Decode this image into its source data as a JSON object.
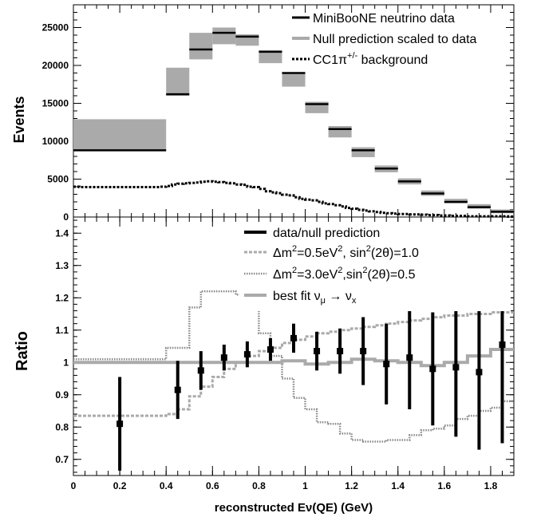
{
  "chart_data": [
    {
      "type": "bar",
      "title": "",
      "ylabel": "Events",
      "xlim": [
        0,
        1.9
      ],
      "ylim": [
        0,
        28000
      ],
      "yticks": [
        0,
        5000,
        10000,
        15000,
        20000,
        25000
      ],
      "yticklabels": [
        "0",
        "5000",
        "10000",
        "15000",
        "20000",
        "25000"
      ],
      "legend": {
        "position": "top-right",
        "entries": [
          {
            "label": "MiniBooNE neutrino data",
            "color": "#000000",
            "style": "solid"
          },
          {
            "label": "Null prediction scaled to data",
            "color": "#aaaaaa",
            "style": "solid"
          },
          {
            "label": "CC1π+/- background",
            "color": "#000000",
            "style": "dotted"
          }
        ]
      },
      "bins": [
        {
          "x0": 0.0,
          "x1": 0.4,
          "data": 8800,
          "pred_low": 8800,
          "pred_high": 12900
        },
        {
          "x0": 0.4,
          "x1": 0.5,
          "data": 16200,
          "pred_low": 16000,
          "pred_high": 19700
        },
        {
          "x0": 0.5,
          "x1": 0.6,
          "data": 22100,
          "pred_low": 20800,
          "pred_high": 24300
        },
        {
          "x0": 0.6,
          "x1": 0.7,
          "data": 24300,
          "pred_low": 22800,
          "pred_high": 25000
        },
        {
          "x0": 0.7,
          "x1": 0.8,
          "data": 23800,
          "pred_low": 22600,
          "pred_high": 24100
        },
        {
          "x0": 0.8,
          "x1": 0.9,
          "data": 21800,
          "pred_low": 20300,
          "pred_high": 22000
        },
        {
          "x0": 0.9,
          "x1": 1.0,
          "data": 19000,
          "pred_low": 17200,
          "pred_high": 19100
        },
        {
          "x0": 1.0,
          "x1": 1.1,
          "data": 14900,
          "pred_low": 13700,
          "pred_high": 15200
        },
        {
          "x0": 1.1,
          "x1": 1.2,
          "data": 11600,
          "pred_low": 10500,
          "pred_high": 12000
        },
        {
          "x0": 1.2,
          "x1": 1.3,
          "data": 8800,
          "pred_low": 7900,
          "pred_high": 9200
        },
        {
          "x0": 1.3,
          "x1": 1.4,
          "data": 6400,
          "pred_low": 5900,
          "pred_high": 6800
        },
        {
          "x0": 1.4,
          "x1": 1.5,
          "data": 4700,
          "pred_low": 4300,
          "pred_high": 5100
        },
        {
          "x0": 1.5,
          "x1": 1.6,
          "data": 3100,
          "pred_low": 2800,
          "pred_high": 3500
        },
        {
          "x0": 1.6,
          "x1": 1.7,
          "data": 2000,
          "pred_low": 1800,
          "pred_high": 2400
        },
        {
          "x0": 1.7,
          "x1": 1.8,
          "data": 1300,
          "pred_low": 1100,
          "pred_high": 1700
        },
        {
          "x0": 1.8,
          "x1": 1.9,
          "data": 700,
          "pred_low": 500,
          "pred_high": 1000
        }
      ],
      "background_cc1pi": {
        "x": [
          0.0,
          0.025,
          0.05,
          0.075,
          0.1,
          0.125,
          0.15,
          0.175,
          0.2,
          0.225,
          0.25,
          0.275,
          0.3,
          0.325,
          0.35,
          0.375,
          0.4,
          0.425,
          0.45,
          0.475,
          0.5,
          0.525,
          0.55,
          0.575,
          0.6,
          0.625,
          0.65,
          0.675,
          0.7,
          0.725,
          0.75,
          0.775,
          0.8,
          0.825,
          0.85,
          0.875,
          0.9,
          0.925,
          0.95,
          0.975,
          1.0,
          1.025,
          1.05,
          1.075,
          1.1,
          1.125,
          1.15,
          1.175,
          1.2,
          1.225,
          1.25,
          1.275,
          1.3,
          1.325,
          1.35,
          1.375,
          1.4,
          1.425,
          1.45,
          1.475,
          1.5,
          1.525,
          1.55,
          1.575,
          1.6,
          1.625,
          1.65,
          1.675,
          1.7,
          1.725,
          1.75,
          1.775,
          1.8,
          1.825,
          1.85,
          1.875,
          1.9
        ],
        "y": [
          4000,
          3950,
          3950,
          3950,
          3950,
          3950,
          3950,
          3950,
          3950,
          3950,
          3950,
          3950,
          3950,
          3950,
          3950,
          4000,
          4100,
          4300,
          4400,
          4450,
          4500,
          4550,
          4650,
          4700,
          4650,
          4600,
          4500,
          4450,
          4300,
          4250,
          4000,
          3950,
          3700,
          3400,
          3250,
          3150,
          2950,
          2850,
          2600,
          2400,
          2300,
          2200,
          2000,
          1800,
          1700,
          1550,
          1400,
          1200,
          1100,
          950,
          850,
          750,
          650,
          550,
          500,
          450,
          400,
          400,
          350,
          350,
          300,
          250,
          250,
          200,
          200,
          150,
          150,
          150,
          100,
          100,
          100,
          100,
          100,
          100,
          100,
          50,
          50
        ]
      }
    },
    {
      "type": "line",
      "title": "",
      "xlabel": "reconstructed Eν(QE) (GeV)",
      "ylabel": "Ratio",
      "xlim": [
        0,
        1.9
      ],
      "ylim": [
        0.65,
        1.45
      ],
      "xticks": [
        0,
        0.2,
        0.4,
        0.6,
        0.8,
        1,
        1.2,
        1.4,
        1.6,
        1.8
      ],
      "xticklabels": [
        "0",
        "0.2",
        "0.4",
        "0.6",
        "0.8",
        "1",
        "1.2",
        "1.4",
        "1.6",
        "1.8"
      ],
      "yticks": [
        0.7,
        0.8,
        0.9,
        1,
        1.1,
        1.2,
        1.3,
        1.4
      ],
      "yticklabels": [
        "0.7",
        "0.8",
        "0.9",
        "1",
        "1.1",
        "1.2",
        "1.3",
        "1.4"
      ],
      "legend": {
        "position": "top-right",
        "entries": [
          {
            "label": "data/null prediction",
            "color": "#000000",
            "style": "solid"
          },
          {
            "label": "Δm²=0.5eV², sin²(2θ)=1.0",
            "color": "#aaaaaa",
            "style": "dashed"
          },
          {
            "label": "Δm²=3.0eV²,sin²(2θ)=0.5",
            "color": "#888888",
            "style": "dotted"
          },
          {
            "label": "best fit νμ → νx",
            "color": "#aaaaaa",
            "style": "solid"
          }
        ]
      },
      "data_points": {
        "x": [
          0.2,
          0.45,
          0.55,
          0.65,
          0.75,
          0.85,
          0.95,
          1.05,
          1.15,
          1.25,
          1.35,
          1.45,
          1.55,
          1.65,
          1.75,
          1.85
        ],
        "y": [
          0.81,
          0.915,
          0.975,
          1.015,
          1.025,
          1.04,
          1.075,
          1.035,
          1.035,
          1.035,
          0.995,
          1.015,
          0.98,
          0.985,
          0.97,
          1.055
        ],
        "err": [
          0.145,
          0.09,
          0.06,
          0.04,
          0.04,
          0.035,
          0.045,
          0.06,
          0.07,
          0.105,
          0.125,
          0.16,
          0.175,
          0.215,
          0.24,
          0.305
        ]
      },
      "series": [
        {
          "name": "Δm²=0.5eV², sin²(2θ)=1.0",
          "edges": [
            0,
            0.4,
            0.45,
            0.5,
            0.55,
            0.6,
            0.65,
            0.7,
            0.75,
            0.8,
            0.85,
            0.9,
            0.95,
            1.0,
            1.05,
            1.1,
            1.15,
            1.2,
            1.25,
            1.3,
            1.35,
            1.4,
            1.45,
            1.5,
            1.55,
            1.6,
            1.65,
            1.7,
            1.75,
            1.8,
            1.85,
            1.9
          ],
          "values": [
            0.835,
            0.84,
            0.855,
            0.895,
            0.925,
            0.955,
            0.98,
            1.0,
            1.02,
            1.035,
            1.045,
            1.06,
            1.07,
            1.08,
            1.09,
            1.095,
            1.1,
            1.105,
            1.11,
            1.115,
            1.12,
            1.125,
            1.13,
            1.135,
            1.14,
            1.145,
            1.145,
            1.15,
            1.15,
            1.155,
            1.155
          ]
        },
        {
          "name": "Δm²=3.0eV²,sin²(2θ)=0.5",
          "edges": [
            0,
            0.4,
            0.5,
            0.55,
            0.6,
            0.65,
            0.7,
            0.75,
            0.8,
            0.85,
            0.9,
            0.95,
            1.0,
            1.05,
            1.1,
            1.15,
            1.2,
            1.25,
            1.3,
            1.35,
            1.4,
            1.45,
            1.5,
            1.55,
            1.6,
            1.65,
            1.7,
            1.75,
            1.8,
            1.85,
            1.9
          ],
          "values": [
            1.01,
            1.045,
            1.17,
            1.22,
            1.22,
            1.22,
            1.21,
            1.17,
            1.09,
            1.02,
            0.95,
            0.89,
            0.855,
            0.815,
            0.81,
            0.78,
            0.76,
            0.755,
            0.755,
            0.76,
            0.76,
            0.775,
            0.79,
            0.795,
            0.805,
            0.825,
            0.835,
            0.85,
            0.86,
            0.88
          ]
        },
        {
          "name": "best fit νμ → νx",
          "edges": [
            0,
            0.4,
            0.5,
            0.6,
            0.7,
            0.8,
            0.9,
            1.0,
            1.1,
            1.2,
            1.3,
            1.4,
            1.5,
            1.6,
            1.7,
            1.8,
            1.9
          ],
          "values": [
            1.0,
            1.0,
            1.0,
            1.0,
            1.0,
            1.0,
            1.005,
            0.995,
            1.0,
            1.01,
            1.005,
            1.0,
            0.99,
            1.0,
            1.02,
            1.04
          ]
        }
      ]
    }
  ]
}
